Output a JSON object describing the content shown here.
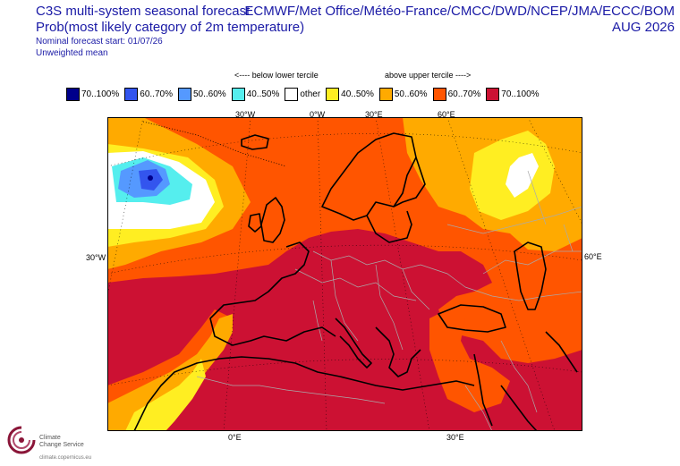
{
  "header": {
    "title_line1": "C3S multi-system seasonal forecast",
    "title_line2": "Prob(most likely category of 2m temperature)",
    "forecast_start": "Nominal forecast start: 01/07/26",
    "weighting": "Unweighted mean",
    "systems": "ECMWF/Met Office/Météo-France/CMCC/DWD/NCEP/JMA/ECCC/BOM",
    "valid_month": "AUG 2026"
  },
  "tercile": {
    "below": "<---- below lower tercile",
    "above": "above upper tercile ---->"
  },
  "legend": [
    {
      "label": "70..100%",
      "color": "#00008b"
    },
    {
      "label": "60..70%",
      "color": "#3355ee"
    },
    {
      "label": "50..60%",
      "color": "#5599ff"
    },
    {
      "label": "40..50%",
      "color": "#55eeee"
    },
    {
      "label": "other",
      "color": "#ffffff"
    },
    {
      "label": "40..50%",
      "color": "#ffee22"
    },
    {
      "label": "50..60%",
      "color": "#ffaa00"
    },
    {
      "label": "60..70%",
      "color": "#ff5500"
    },
    {
      "label": "70..100%",
      "color": "#cc1133"
    }
  ],
  "axes": {
    "top": [
      "30°W",
      "0°W",
      "30°E",
      "60°E"
    ],
    "bottom": [
      "0°E",
      "30°E"
    ],
    "left": "30°W",
    "right": "60°E"
  },
  "logo": {
    "name_line1": "Climate",
    "name_line2": "Change Service",
    "url": "climate.copernicus.eu"
  }
}
